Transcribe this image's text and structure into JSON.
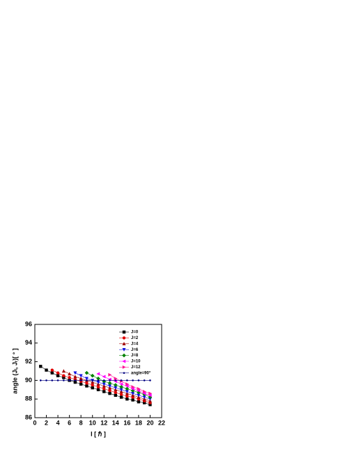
{
  "chart_data": {
    "type": "line",
    "xlabel": "I [ ℏ ]",
    "ylabel": "angle (Jₗ, Jᵣ)[ ° ]",
    "xlim": [
      0,
      22
    ],
    "xticks": [
      0,
      2,
      4,
      6,
      8,
      10,
      12,
      14,
      16,
      18,
      20,
      22
    ],
    "ylim": [
      86,
      96
    ],
    "yticks": [
      86,
      88,
      90,
      92,
      94,
      96
    ],
    "legend": "upper right",
    "series": [
      {
        "name": "J=0",
        "color": "#000000",
        "marker": "square",
        "x": [
          1,
          2,
          3,
          4,
          5,
          6,
          7,
          8,
          9,
          10,
          11,
          12,
          13,
          14,
          15,
          16,
          17,
          18,
          19,
          20
        ],
        "values": [
          91.5,
          91.1,
          90.8,
          90.5,
          90.3,
          90.0,
          89.8,
          89.6,
          89.4,
          89.2,
          89.0,
          88.8,
          88.6,
          88.4,
          88.2,
          88.0,
          87.9,
          87.7,
          87.6,
          87.4
        ]
      },
      {
        "name": "J=2",
        "color": "#e00000",
        "marker": "circle",
        "x": [
          3,
          4,
          5,
          6,
          7,
          8,
          9,
          10,
          11,
          12,
          13,
          14,
          15,
          16,
          17,
          18,
          19,
          20
        ],
        "values": [
          91.1,
          90.8,
          90.5,
          90.3,
          90.1,
          89.9,
          89.7,
          89.5,
          89.3,
          89.1,
          88.9,
          88.7,
          88.5,
          88.3,
          88.2,
          88.0,
          87.8,
          87.6
        ]
      },
      {
        "name": "J=4",
        "color": "#a00000",
        "marker": "triangle-up",
        "x": [
          5,
          6,
          7,
          8,
          9,
          10,
          11,
          12,
          13,
          14,
          15,
          16,
          17,
          18,
          19,
          20
        ],
        "values": [
          91.0,
          90.7,
          90.4,
          90.2,
          90.0,
          89.8,
          89.6,
          89.4,
          89.2,
          89.0,
          88.8,
          88.6,
          88.4,
          88.2,
          88.0,
          87.8
        ]
      },
      {
        "name": "J=6",
        "color": "#1010e0",
        "marker": "triangle-down",
        "x": [
          7,
          8,
          9,
          10,
          11,
          12,
          13,
          14,
          15,
          16,
          17,
          18,
          19,
          20
        ],
        "values": [
          90.8,
          90.5,
          90.2,
          90.0,
          89.8,
          89.6,
          89.4,
          89.2,
          89.0,
          88.8,
          88.6,
          88.4,
          88.2,
          88.0
        ]
      },
      {
        "name": "J=8",
        "color": "#008000",
        "marker": "diamond",
        "x": [
          9,
          10,
          11,
          12,
          13,
          14,
          15,
          16,
          17,
          18,
          19,
          20
        ],
        "values": [
          90.8,
          90.5,
          90.2,
          89.9,
          89.7,
          89.5,
          89.3,
          89.1,
          88.9,
          88.7,
          88.5,
          88.2
        ]
      },
      {
        "name": "J=10",
        "color": "#ff00ff",
        "marker": "triangle-left",
        "x": [
          11,
          12,
          13,
          14,
          15,
          16,
          17,
          18,
          19,
          20
        ],
        "values": [
          90.7,
          90.4,
          90.1,
          89.9,
          89.6,
          89.4,
          89.1,
          88.9,
          88.6,
          88.4
        ]
      },
      {
        "name": "J=12",
        "color": "#ff1493",
        "marker": "triangle-right",
        "x": [
          13,
          14,
          15,
          16,
          17,
          18,
          19,
          20
        ],
        "values": [
          90.6,
          90.2,
          89.9,
          89.6,
          89.3,
          89.1,
          88.8,
          88.6
        ]
      },
      {
        "name": "angle=90°",
        "color": "#000080",
        "marker": "dot",
        "x": [
          1,
          2,
          3,
          4,
          5,
          6,
          7,
          8,
          9,
          10,
          11,
          12,
          13,
          14,
          15,
          16,
          17,
          18,
          19,
          20
        ],
        "values": [
          90,
          90,
          90,
          90,
          90,
          90,
          90,
          90,
          90,
          90,
          90,
          90,
          90,
          90,
          90,
          90,
          90,
          90,
          90,
          90
        ]
      }
    ]
  }
}
